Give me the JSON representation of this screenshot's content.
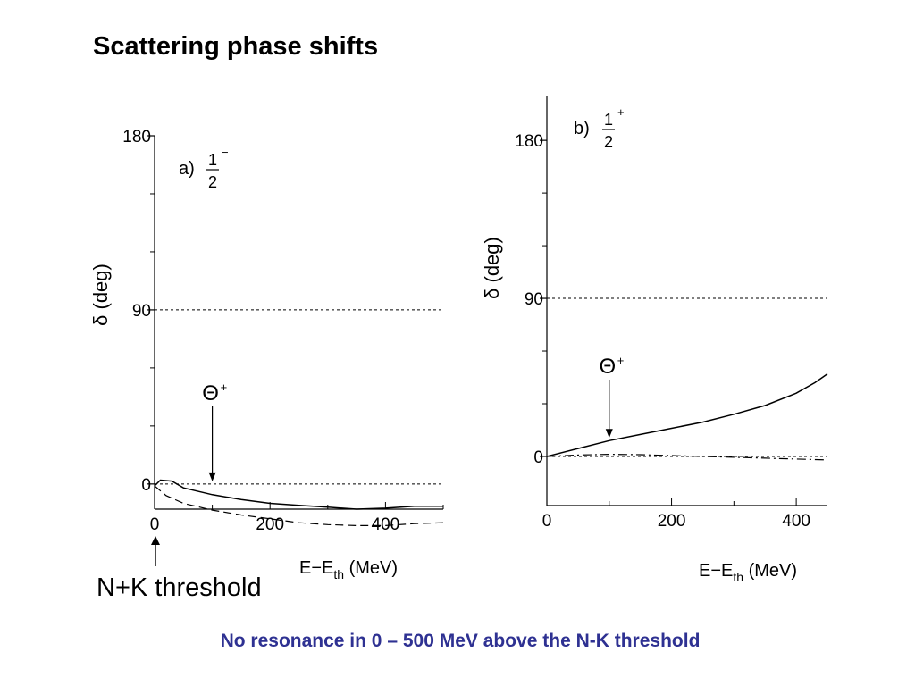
{
  "slide": {
    "title": "Scattering phase shifts",
    "threshold_label": "N+K threshold",
    "caption": "No resonance in 0 – 500 MeV above the N-K threshold",
    "caption_color": "#2e3192"
  },
  "chart_data": [
    {
      "type": "line",
      "panel": "a)",
      "spin_parity": {
        "numerator": "1",
        "sign": "−",
        "denominator": "2"
      },
      "ylabel": "δ (deg)",
      "xlabel": {
        "main": "E−E",
        "sub": "th",
        "unit": "(MeV)"
      },
      "x_ticks": [
        0,
        200,
        400
      ],
      "y_ticks": [
        0,
        90,
        180
      ],
      "xlim": [
        0,
        500
      ],
      "ylim": [
        -13,
        180
      ],
      "reference_lines": [
        0,
        90
      ],
      "annotation": {
        "label": "Θ",
        "sup": "+",
        "x": 100
      },
      "series": [
        {
          "style": "solid",
          "x": [
            0,
            10,
            30,
            50,
            100,
            150,
            200,
            250,
            300,
            350,
            400,
            450,
            500
          ],
          "y": [
            -1,
            2,
            1.5,
            -2,
            -5.5,
            -8,
            -10,
            -11,
            -12,
            -13,
            -12.5,
            -11.5,
            -11.5
          ]
        },
        {
          "style": "dashed",
          "x": [
            0,
            20,
            50,
            100,
            150,
            200,
            250,
            300,
            350,
            400,
            450,
            500
          ],
          "y": [
            -1,
            -6,
            -10,
            -13.5,
            -16,
            -18,
            -20,
            -21,
            -21.5,
            -21.5,
            -20.5,
            -20
          ]
        }
      ]
    },
    {
      "type": "line",
      "panel": "b)",
      "spin_parity": {
        "numerator": "1",
        "sign": "+",
        "denominator": "2"
      },
      "ylabel": "δ (deg)",
      "xlabel": {
        "main": "E−E",
        "sub": "th",
        "unit": "(MeV)"
      },
      "x_ticks": [
        0,
        200,
        400
      ],
      "y_ticks": [
        0,
        90,
        180
      ],
      "xlim": [
        0,
        450
      ],
      "ylim": [
        -28,
        205
      ],
      "reference_lines": [
        0,
        90
      ],
      "annotation": {
        "label": "Θ",
        "sup": "+",
        "x": 100
      },
      "series": [
        {
          "style": "solid",
          "x": [
            0,
            50,
            100,
            150,
            200,
            250,
            300,
            350,
            400,
            430,
            450
          ],
          "y": [
            0,
            4.5,
            9,
            12.5,
            16,
            19.5,
            24,
            29,
            36,
            42,
            47
          ]
        },
        {
          "style": "dashdot",
          "x": [
            0,
            50,
            100,
            150,
            200,
            250,
            300,
            350,
            400,
            450
          ],
          "y": [
            0,
            0.8,
            1.2,
            1.0,
            0.5,
            0,
            -0.5,
            -1,
            -1.5,
            -2
          ]
        }
      ]
    }
  ]
}
